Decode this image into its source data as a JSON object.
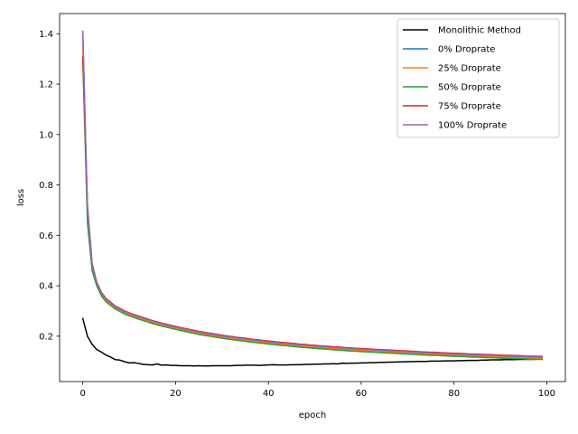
{
  "chart_data": {
    "type": "line",
    "title": "",
    "xlabel": "epoch",
    "ylabel": "loss",
    "xlim": [
      -5,
      104
    ],
    "ylim": [
      0.02,
      1.48
    ],
    "xticks": [
      0,
      20,
      40,
      60,
      80,
      100
    ],
    "yticks": [
      0.2,
      0.4,
      0.6,
      0.8,
      1.0,
      1.2,
      1.4
    ],
    "xtick_labels": [
      "0",
      "20",
      "40",
      "60",
      "80",
      "100"
    ],
    "ytick_labels": [
      "0.2",
      "0.4",
      "0.6",
      "0.8",
      "1.0",
      "1.2",
      "1.4"
    ],
    "legend_position": "top-right",
    "x": [
      0,
      1,
      2,
      3,
      4,
      5,
      6,
      7,
      8,
      9,
      10,
      11,
      12,
      13,
      14,
      15,
      16,
      17,
      18,
      19,
      20,
      21,
      22,
      23,
      24,
      25,
      26,
      27,
      28,
      29,
      30,
      31,
      32,
      33,
      34,
      35,
      36,
      37,
      38,
      39,
      40,
      41,
      42,
      43,
      44,
      45,
      46,
      47,
      48,
      49,
      50,
      51,
      52,
      53,
      54,
      55,
      56,
      57,
      58,
      59,
      60,
      61,
      62,
      63,
      64,
      65,
      66,
      67,
      68,
      69,
      70,
      71,
      72,
      73,
      74,
      75,
      76,
      77,
      78,
      79,
      80,
      81,
      82,
      83,
      84,
      85,
      86,
      87,
      88,
      89,
      90,
      91,
      92,
      93,
      94,
      95,
      96,
      97,
      98,
      99
    ],
    "series": [
      {
        "name": "Monolithic Method",
        "color": "#000000",
        "values": [
          0.27,
          0.2,
          0.168,
          0.147,
          0.137,
          0.125,
          0.117,
          0.107,
          0.105,
          0.099,
          0.094,
          0.095,
          0.092,
          0.088,
          0.087,
          0.086,
          0.09,
          0.085,
          0.086,
          0.084,
          0.084,
          0.083,
          0.083,
          0.083,
          0.082,
          0.083,
          0.082,
          0.082,
          0.083,
          0.083,
          0.083,
          0.083,
          0.083,
          0.084,
          0.084,
          0.085,
          0.085,
          0.085,
          0.084,
          0.085,
          0.086,
          0.087,
          0.086,
          0.086,
          0.086,
          0.087,
          0.087,
          0.087,
          0.088,
          0.088,
          0.089,
          0.089,
          0.09,
          0.09,
          0.091,
          0.09,
          0.093,
          0.092,
          0.093,
          0.093,
          0.094,
          0.094,
          0.095,
          0.095,
          0.096,
          0.096,
          0.097,
          0.097,
          0.098,
          0.098,
          0.099,
          0.099,
          0.1,
          0.1,
          0.1,
          0.101,
          0.101,
          0.101,
          0.102,
          0.102,
          0.102,
          0.103,
          0.103,
          0.104,
          0.104,
          0.104,
          0.105,
          0.105,
          0.106,
          0.106,
          0.106,
          0.107,
          0.107,
          0.107,
          0.108,
          0.108,
          0.108,
          0.108,
          0.109,
          0.109
        ]
      },
      {
        "name": "0% Droprate",
        "color": "#1f77b4",
        "values": [
          1.4,
          0.7,
          0.48,
          0.41,
          0.37,
          0.345,
          0.33,
          0.315,
          0.305,
          0.295,
          0.288,
          0.281,
          0.275,
          0.269,
          0.263,
          0.257,
          0.252,
          0.247,
          0.243,
          0.238,
          0.234,
          0.23,
          0.226,
          0.222,
          0.218,
          0.214,
          0.211,
          0.208,
          0.205,
          0.202,
          0.199,
          0.196,
          0.194,
          0.191,
          0.189,
          0.187,
          0.184,
          0.182,
          0.18,
          0.178,
          0.176,
          0.174,
          0.172,
          0.17,
          0.169,
          0.167,
          0.165,
          0.163,
          0.162,
          0.16,
          0.159,
          0.157,
          0.156,
          0.155,
          0.153,
          0.152,
          0.151,
          0.149,
          0.148,
          0.147,
          0.146,
          0.145,
          0.144,
          0.143,
          0.142,
          0.141,
          0.14,
          0.139,
          0.138,
          0.137,
          0.136,
          0.135,
          0.134,
          0.133,
          0.132,
          0.131,
          0.131,
          0.13,
          0.129,
          0.128,
          0.127,
          0.127,
          0.126,
          0.125,
          0.124,
          0.124,
          0.123,
          0.122,
          0.122,
          0.121,
          0.12,
          0.119,
          0.119,
          0.118,
          0.118,
          0.117,
          0.116,
          0.116,
          0.115,
          0.115
        ]
      },
      {
        "name": "25% Droprate",
        "color": "#ff7f0e",
        "values": [
          1.35,
          0.68,
          0.47,
          0.405,
          0.365,
          0.34,
          0.326,
          0.312,
          0.302,
          0.292,
          0.285,
          0.278,
          0.272,
          0.266,
          0.26,
          0.254,
          0.249,
          0.244,
          0.24,
          0.235,
          0.231,
          0.227,
          0.223,
          0.219,
          0.215,
          0.211,
          0.208,
          0.205,
          0.202,
          0.199,
          0.196,
          0.193,
          0.191,
          0.188,
          0.186,
          0.184,
          0.181,
          0.179,
          0.177,
          0.175,
          0.173,
          0.171,
          0.169,
          0.167,
          0.166,
          0.164,
          0.162,
          0.16,
          0.159,
          0.157,
          0.156,
          0.154,
          0.153,
          0.152,
          0.15,
          0.149,
          0.148,
          0.146,
          0.145,
          0.144,
          0.143,
          0.142,
          0.141,
          0.14,
          0.139,
          0.138,
          0.137,
          0.136,
          0.135,
          0.134,
          0.133,
          0.132,
          0.131,
          0.13,
          0.129,
          0.128,
          0.128,
          0.127,
          0.126,
          0.125,
          0.124,
          0.124,
          0.123,
          0.122,
          0.121,
          0.121,
          0.12,
          0.119,
          0.119,
          0.118,
          0.117,
          0.116,
          0.116,
          0.115,
          0.115,
          0.114,
          0.113,
          0.113,
          0.112,
          0.112
        ]
      },
      {
        "name": "50% Droprate",
        "color": "#2ca02c",
        "values": [
          1.3,
          0.65,
          0.46,
          0.4,
          0.36,
          0.336,
          0.322,
          0.308,
          0.298,
          0.288,
          0.281,
          0.274,
          0.268,
          0.262,
          0.256,
          0.25,
          0.245,
          0.24,
          0.236,
          0.231,
          0.227,
          0.223,
          0.219,
          0.215,
          0.211,
          0.207,
          0.204,
          0.201,
          0.198,
          0.195,
          0.192,
          0.189,
          0.187,
          0.184,
          0.182,
          0.18,
          0.177,
          0.175,
          0.173,
          0.171,
          0.169,
          0.167,
          0.165,
          0.163,
          0.162,
          0.16,
          0.158,
          0.156,
          0.155,
          0.153,
          0.152,
          0.15,
          0.149,
          0.148,
          0.146,
          0.145,
          0.144,
          0.142,
          0.141,
          0.14,
          0.139,
          0.138,
          0.137,
          0.136,
          0.135,
          0.134,
          0.133,
          0.132,
          0.131,
          0.13,
          0.129,
          0.128,
          0.127,
          0.126,
          0.125,
          0.124,
          0.124,
          0.123,
          0.122,
          0.121,
          0.12,
          0.12,
          0.119,
          0.118,
          0.117,
          0.117,
          0.116,
          0.115,
          0.115,
          0.114,
          0.113,
          0.112,
          0.112,
          0.111,
          0.111,
          0.11,
          0.109,
          0.109,
          0.108,
          0.108
        ]
      },
      {
        "name": "75% Droprate",
        "color": "#d62728",
        "values": [
          1.31,
          0.72,
          0.49,
          0.415,
          0.375,
          0.35,
          0.335,
          0.32,
          0.31,
          0.3,
          0.293,
          0.286,
          0.28,
          0.274,
          0.268,
          0.262,
          0.257,
          0.252,
          0.248,
          0.243,
          0.239,
          0.235,
          0.231,
          0.227,
          0.223,
          0.219,
          0.216,
          0.213,
          0.21,
          0.207,
          0.204,
          0.201,
          0.199,
          0.196,
          0.194,
          0.192,
          0.189,
          0.187,
          0.185,
          0.183,
          0.181,
          0.179,
          0.177,
          0.175,
          0.174,
          0.172,
          0.17,
          0.168,
          0.167,
          0.165,
          0.164,
          0.162,
          0.161,
          0.16,
          0.158,
          0.157,
          0.156,
          0.154,
          0.153,
          0.152,
          0.151,
          0.15,
          0.149,
          0.148,
          0.147,
          0.146,
          0.145,
          0.144,
          0.143,
          0.142,
          0.141,
          0.14,
          0.139,
          0.138,
          0.137,
          0.136,
          0.136,
          0.135,
          0.134,
          0.133,
          0.132,
          0.132,
          0.131,
          0.13,
          0.129,
          0.129,
          0.128,
          0.127,
          0.127,
          0.126,
          0.125,
          0.124,
          0.124,
          0.123,
          0.123,
          0.122,
          0.121,
          0.121,
          0.12,
          0.12
        ]
      },
      {
        "name": "100% Droprate",
        "color": "#9467bd",
        "values": [
          1.41,
          0.71,
          0.485,
          0.412,
          0.372,
          0.347,
          0.332,
          0.317,
          0.307,
          0.297,
          0.29,
          0.283,
          0.277,
          0.271,
          0.265,
          0.259,
          0.254,
          0.249,
          0.245,
          0.24,
          0.236,
          0.232,
          0.228,
          0.224,
          0.22,
          0.216,
          0.213,
          0.21,
          0.207,
          0.204,
          0.201,
          0.198,
          0.196,
          0.193,
          0.191,
          0.189,
          0.186,
          0.184,
          0.182,
          0.18,
          0.178,
          0.176,
          0.174,
          0.172,
          0.171,
          0.169,
          0.167,
          0.165,
          0.164,
          0.162,
          0.161,
          0.159,
          0.158,
          0.157,
          0.155,
          0.154,
          0.153,
          0.151,
          0.15,
          0.149,
          0.148,
          0.147,
          0.146,
          0.145,
          0.144,
          0.143,
          0.142,
          0.141,
          0.14,
          0.139,
          0.138,
          0.137,
          0.136,
          0.135,
          0.134,
          0.133,
          0.133,
          0.132,
          0.131,
          0.13,
          0.129,
          0.129,
          0.128,
          0.127,
          0.126,
          0.126,
          0.125,
          0.124,
          0.124,
          0.123,
          0.122,
          0.121,
          0.121,
          0.12,
          0.12,
          0.119,
          0.118,
          0.118,
          0.117,
          0.117
        ]
      }
    ]
  }
}
